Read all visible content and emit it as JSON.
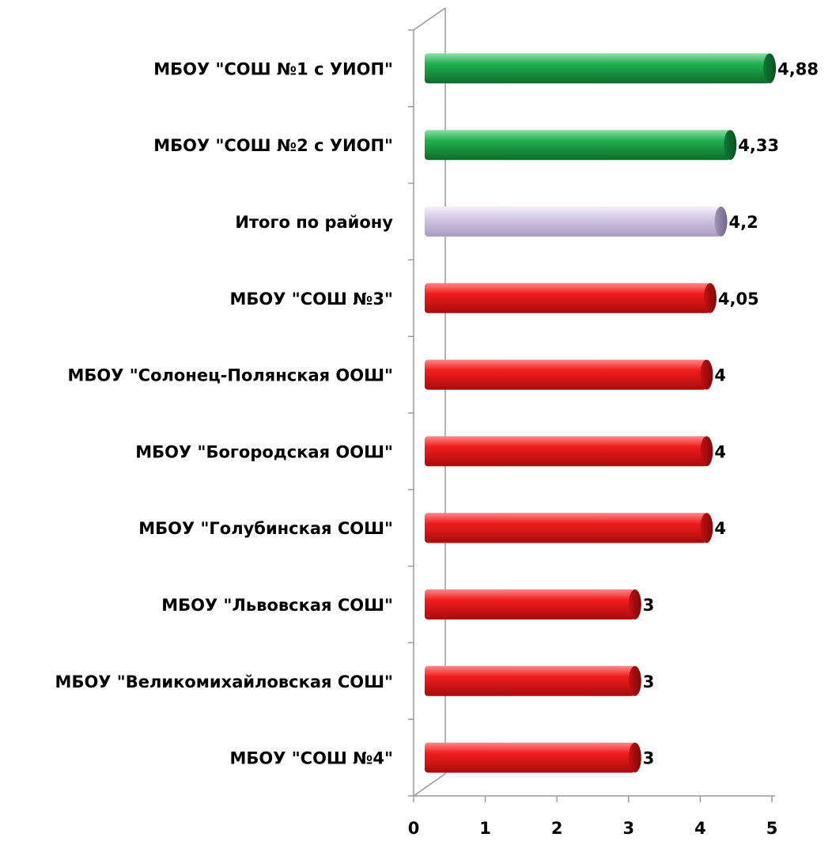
{
  "chart_data": {
    "type": "bar",
    "orientation": "horizontal",
    "categories": [
      "МБОУ \"СОШ №1 с УИОП\"",
      "МБОУ \"СОШ №2 с УИОП\"",
      "Итого по району",
      "МБОУ \"СОШ №3\"",
      "МБОУ \"Солонец-Полянская ООШ\"",
      "МБОУ \"Богородская ООШ\"",
      "МБОУ \"Голубинская СОШ\"",
      "МБОУ \"Львовская СОШ\"",
      "МБОУ \"Великомихайловская СОШ\"",
      "МБОУ \"СОШ №4\""
    ],
    "values": [
      4.88,
      4.33,
      4.2,
      4.05,
      4,
      4,
      4,
      3,
      3,
      3
    ],
    "value_labels": [
      "4,88",
      "4,33",
      "4,2",
      "4,05",
      "4",
      "4",
      "4",
      "3",
      "3",
      "3"
    ],
    "bar_colors": [
      "#1fa84a",
      "#1fa84a",
      "#cfc6e3",
      "#e8151b",
      "#e8151b",
      "#e8151b",
      "#e8151b",
      "#e8151b",
      "#e8151b",
      "#e8151b"
    ],
    "xlim": [
      0,
      5
    ],
    "x_ticks": [
      "0",
      "1",
      "2",
      "3",
      "4",
      "5"
    ],
    "title": "",
    "xlabel": "",
    "ylabel": "",
    "grid": false,
    "legend": "none"
  }
}
